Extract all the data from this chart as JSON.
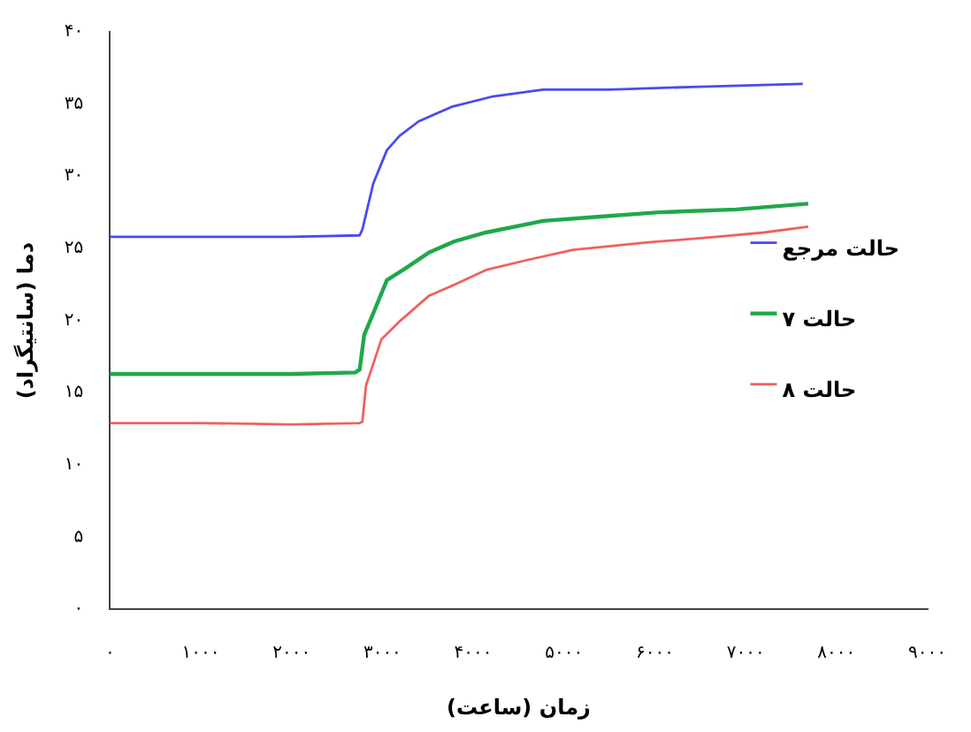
{
  "chart_data": {
    "type": "line",
    "xlabel": "زمان (ساعت)",
    "ylabel": "دما (سانتیگراد)",
    "xlim": [
      0,
      9000
    ],
    "xticks": [
      {
        "value": 0,
        "label": "۰"
      },
      {
        "value": 1000,
        "label": "۱۰۰۰"
      },
      {
        "value": 2000,
        "label": "۲۰۰۰"
      },
      {
        "value": 3000,
        "label": "۳۰۰۰"
      },
      {
        "value": 4000,
        "label": "۴۰۰۰"
      },
      {
        "value": 5000,
        "label": "۵۰۰۰"
      },
      {
        "value": 6000,
        "label": "۶۰۰۰"
      },
      {
        "value": 7000,
        "label": "۷۰۰۰"
      },
      {
        "value": 8000,
        "label": "۸۰۰۰"
      },
      {
        "value": 9000,
        "label": "۹۰۰۰"
      }
    ],
    "ylim": [
      0,
      40
    ],
    "yticks": [
      {
        "value": 0,
        "label": "۰"
      },
      {
        "value": 5,
        "label": "۵"
      },
      {
        "value": 10,
        "label": "۱۰"
      },
      {
        "value": 15,
        "label": "۱۵"
      },
      {
        "value": 20,
        "label": "۲۰"
      },
      {
        "value": 25,
        "label": "۲۵"
      },
      {
        "value": 30,
        "label": "۳۰"
      },
      {
        "value": 35,
        "label": "۳۵"
      },
      {
        "value": 40,
        "label": "۴۰"
      }
    ],
    "grid": false,
    "legend": "right",
    "marker": "none",
    "series": [
      {
        "name": "حالت مرجع",
        "color": "#4a4af0",
        "x": [
          0,
          1000,
          2000,
          2750,
          2780,
          2900,
          3050,
          3190,
          3400,
          3760,
          4200,
          4770,
          5500,
          6500,
          7630
        ],
        "values": [
          25.8,
          25.8,
          25.8,
          25.9,
          26.3,
          29.5,
          31.8,
          32.8,
          33.8,
          34.8,
          35.5,
          36.0,
          36.0,
          36.2,
          36.4
        ]
      },
      {
        "name": "حالت ۷",
        "color": "#1fa84a",
        "x": [
          0,
          1000,
          2000,
          2700,
          2750,
          2800,
          2900,
          3050,
          3250,
          3510,
          3800,
          4140,
          4770,
          5400,
          6050,
          6900,
          7690
        ],
        "values": [
          16.3,
          16.3,
          16.3,
          16.4,
          16.6,
          19.0,
          20.5,
          22.8,
          23.6,
          24.7,
          25.5,
          26.1,
          26.9,
          27.2,
          27.5,
          27.7,
          28.1
        ]
      },
      {
        "name": "حالت ۸",
        "color": "#f06060",
        "x": [
          0,
          1000,
          2000,
          2750,
          2780,
          2820,
          2990,
          3200,
          3510,
          3800,
          4140,
          4600,
          5100,
          5900,
          6680,
          7200,
          7690
        ],
        "values": [
          12.9,
          12.9,
          12.8,
          12.9,
          13.0,
          15.5,
          18.7,
          20.0,
          21.7,
          22.5,
          23.5,
          24.2,
          24.9,
          25.4,
          25.8,
          26.1,
          26.5
        ]
      }
    ]
  }
}
